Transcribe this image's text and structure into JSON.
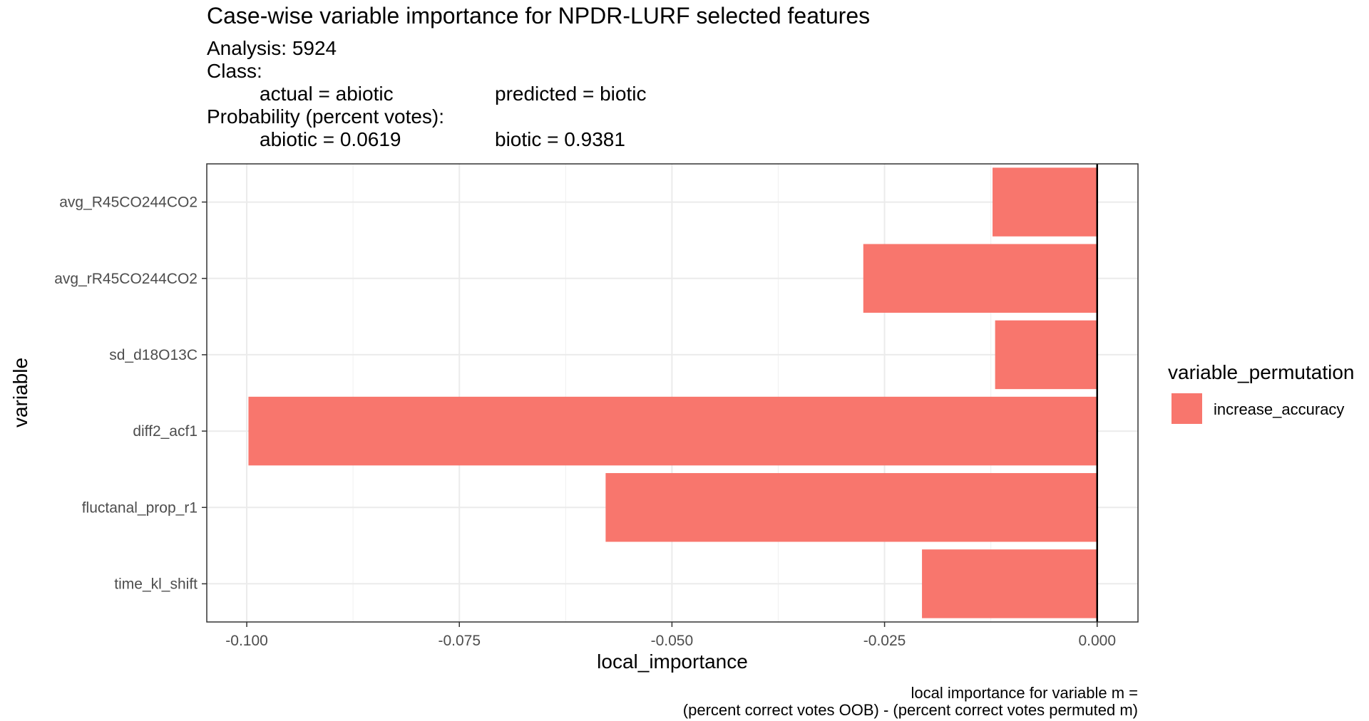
{
  "chart_data": {
    "type": "bar",
    "orientation": "horizontal",
    "title": "Case-wise variable importance for NPDR-LURF selected features",
    "subtitle": {
      "analysis": "Analysis: 5924",
      "class_heading": "Class:",
      "actual": "actual = abiotic",
      "predicted": "predicted = biotic",
      "probability_heading": "Probability (percent votes):",
      "prob_abiotic": "abiotic = 0.0619",
      "prob_biotic": "biotic = 0.9381"
    },
    "categories": [
      "avg_R45CO244CO2",
      "avg_rR45CO244CO2",
      "sd_d18O13C",
      "diff2_acf1",
      "fluctanal_prop_r1",
      "time_kl_shift"
    ],
    "series": [
      {
        "name": "increase_accuracy",
        "values": [
          -0.0123,
          -0.0275,
          -0.012,
          -0.0998,
          -0.0578,
          -0.0206
        ]
      }
    ],
    "xlabel": "local_importance",
    "ylabel": "variable",
    "xlim": [
      -0.1047,
      0.0048
    ],
    "xticks": [
      -0.1,
      -0.075,
      -0.05,
      -0.025,
      0.0
    ],
    "xtick_labels": [
      "-0.100",
      "-0.075",
      "-0.050",
      "-0.025",
      "0.000"
    ],
    "grid": true,
    "legend": {
      "title": "variable_permutation",
      "position": "right",
      "entries": [
        "increase_accuracy"
      ]
    },
    "caption": [
      "local importance for variable m =",
      "(percent correct votes OOB) - (percent correct votes permuted m)"
    ],
    "colors": {
      "bar": "#F8766D"
    }
  }
}
